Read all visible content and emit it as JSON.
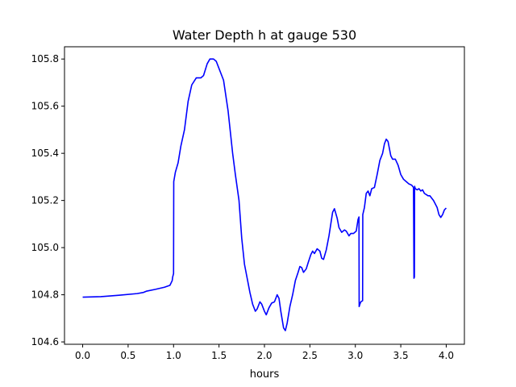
{
  "chart_data": {
    "type": "line",
    "title": "Water Depth h at gauge 530",
    "xlabel": "hours",
    "ylabel": "",
    "xlim": [
      -0.2,
      4.2
    ],
    "ylim": [
      104.59,
      105.852
    ],
    "xticks": [
      0.0,
      0.5,
      1.0,
      1.5,
      2.0,
      2.5,
      3.0,
      3.5,
      4.0
    ],
    "xtick_labels": [
      "0.0",
      "0.5",
      "1.0",
      "1.5",
      "2.0",
      "2.5",
      "3.0",
      "3.5",
      "4.0"
    ],
    "yticks": [
      104.6,
      104.8,
      105.0,
      105.2,
      105.4,
      105.6,
      105.8
    ],
    "ytick_labels": [
      "104.6",
      "104.8",
      "105.0",
      "105.2",
      "105.4",
      "105.6",
      "105.8"
    ],
    "grid": false,
    "series": [
      {
        "color": "#0000ff",
        "points": [
          [
            0.0,
            104.79
          ],
          [
            0.2,
            104.792
          ],
          [
            0.4,
            104.798
          ],
          [
            0.6,
            104.805
          ],
          [
            0.67,
            104.81
          ],
          [
            0.7,
            104.815
          ],
          [
            0.8,
            104.823
          ],
          [
            0.9,
            104.832
          ],
          [
            0.96,
            104.84
          ],
          [
            0.985,
            104.86
          ],
          [
            0.99,
            104.875
          ],
          [
            1.0,
            104.89
          ],
          [
            1.002,
            105.28
          ],
          [
            1.02,
            105.32
          ],
          [
            1.05,
            105.36
          ],
          [
            1.08,
            105.43
          ],
          [
            1.12,
            105.5
          ],
          [
            1.16,
            105.62
          ],
          [
            1.2,
            105.69
          ],
          [
            1.25,
            105.72
          ],
          [
            1.3,
            105.72
          ],
          [
            1.33,
            105.73
          ],
          [
            1.37,
            105.78
          ],
          [
            1.4,
            105.8
          ],
          [
            1.44,
            105.8
          ],
          [
            1.47,
            105.79
          ],
          [
            1.5,
            105.76
          ],
          [
            1.55,
            105.71
          ],
          [
            1.6,
            105.58
          ],
          [
            1.65,
            105.4
          ],
          [
            1.68,
            105.31
          ],
          [
            1.72,
            105.2
          ],
          [
            1.75,
            105.04
          ],
          [
            1.78,
            104.93
          ],
          [
            1.81,
            104.87
          ],
          [
            1.84,
            104.81
          ],
          [
            1.87,
            104.76
          ],
          [
            1.9,
            104.73
          ],
          [
            1.92,
            104.74
          ],
          [
            1.95,
            104.77
          ],
          [
            1.97,
            104.76
          ],
          [
            2.0,
            104.73
          ],
          [
            2.02,
            104.715
          ],
          [
            2.05,
            104.745
          ],
          [
            2.08,
            104.765
          ],
          [
            2.11,
            104.77
          ],
          [
            2.14,
            104.8
          ],
          [
            2.16,
            104.785
          ],
          [
            2.18,
            104.73
          ],
          [
            2.21,
            104.66
          ],
          [
            2.23,
            104.648
          ],
          [
            2.25,
            104.68
          ],
          [
            2.28,
            104.75
          ],
          [
            2.31,
            104.8
          ],
          [
            2.34,
            104.86
          ],
          [
            2.37,
            104.895
          ],
          [
            2.39,
            104.92
          ],
          [
            2.41,
            104.915
          ],
          [
            2.43,
            104.895
          ],
          [
            2.46,
            104.91
          ],
          [
            2.48,
            104.935
          ],
          [
            2.51,
            104.97
          ],
          [
            2.53,
            104.985
          ],
          [
            2.55,
            104.975
          ],
          [
            2.58,
            104.995
          ],
          [
            2.61,
            104.985
          ],
          [
            2.63,
            104.955
          ],
          [
            2.65,
            104.95
          ],
          [
            2.68,
            104.99
          ],
          [
            2.71,
            105.05
          ],
          [
            2.73,
            105.1
          ],
          [
            2.75,
            105.15
          ],
          [
            2.77,
            105.165
          ],
          [
            2.8,
            105.125
          ],
          [
            2.82,
            105.085
          ],
          [
            2.85,
            105.065
          ],
          [
            2.88,
            105.075
          ],
          [
            2.9,
            105.07
          ],
          [
            2.93,
            105.05
          ],
          [
            2.95,
            105.06
          ],
          [
            2.98,
            105.06
          ],
          [
            3.01,
            105.07
          ],
          [
            3.03,
            105.12
          ],
          [
            3.04,
            105.13
          ],
          [
            3.042,
            104.75
          ],
          [
            3.05,
            104.76
          ],
          [
            3.06,
            104.77
          ],
          [
            3.08,
            104.775
          ],
          [
            3.082,
            105.14
          ],
          [
            3.1,
            105.17
          ],
          [
            3.12,
            105.23
          ],
          [
            3.14,
            105.24
          ],
          [
            3.16,
            105.22
          ],
          [
            3.18,
            105.25
          ],
          [
            3.21,
            105.255
          ],
          [
            3.24,
            105.31
          ],
          [
            3.27,
            105.37
          ],
          [
            3.3,
            105.4
          ],
          [
            3.32,
            105.44
          ],
          [
            3.34,
            105.46
          ],
          [
            3.36,
            105.45
          ],
          [
            3.39,
            105.39
          ],
          [
            3.41,
            105.375
          ],
          [
            3.44,
            105.375
          ],
          [
            3.47,
            105.35
          ],
          [
            3.5,
            105.31
          ],
          [
            3.53,
            105.29
          ],
          [
            3.56,
            105.28
          ],
          [
            3.59,
            105.27
          ],
          [
            3.62,
            105.265
          ],
          [
            3.64,
            105.255
          ],
          [
            3.645,
            104.87
          ],
          [
            3.65,
            104.875
          ],
          [
            3.652,
            105.26
          ],
          [
            3.66,
            105.25
          ],
          [
            3.68,
            105.245
          ],
          [
            3.7,
            105.25
          ],
          [
            3.72,
            105.24
          ],
          [
            3.74,
            105.245
          ],
          [
            3.76,
            105.23
          ],
          [
            3.78,
            105.225
          ],
          [
            3.8,
            105.22
          ],
          [
            3.82,
            105.22
          ],
          [
            3.84,
            105.21
          ],
          [
            3.86,
            105.2
          ],
          [
            3.88,
            105.185
          ],
          [
            3.9,
            105.17
          ],
          [
            3.92,
            105.14
          ],
          [
            3.94,
            105.128
          ],
          [
            3.96,
            105.14
          ],
          [
            3.98,
            105.16
          ],
          [
            4.0,
            105.168
          ]
        ]
      }
    ]
  }
}
